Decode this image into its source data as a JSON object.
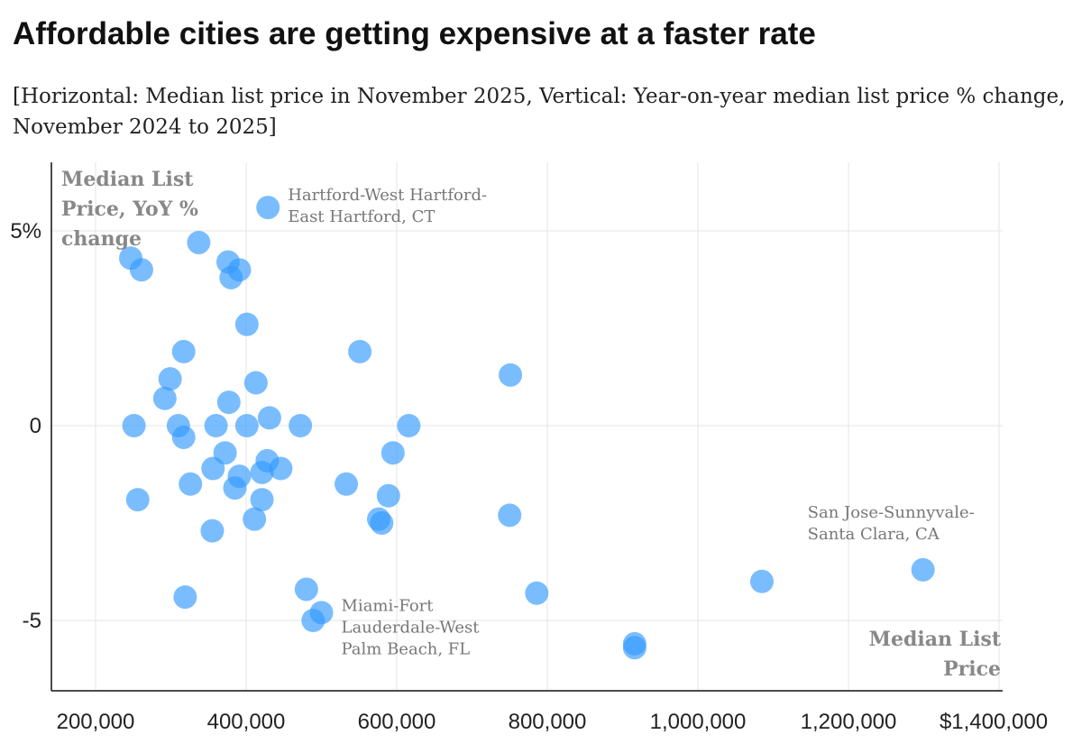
{
  "title": "Affordable cities are getting expensive at a faster rate",
  "subtitle": "[Horizontal: Median list price in November 2025, Vertical: Year-on-year median list price % change, November 2024 to 2025]",
  "chart_data": {
    "type": "scatter",
    "title": "Affordable cities are getting expensive at a faster rate",
    "xlabel": "Median List Price",
    "ylabel_lines": [
      "Median List",
      "Price, YoY %",
      "change"
    ],
    "xlabel_lines": [
      "Median List",
      "Price"
    ],
    "xlim": [
      140000,
      1400000
    ],
    "ylim": [
      -6.8,
      6.6
    ],
    "xticks": [
      {
        "v": 200000,
        "label": "200,000"
      },
      {
        "v": 400000,
        "label": "400,000"
      },
      {
        "v": 600000,
        "label": "600,000"
      },
      {
        "v": 800000,
        "label": "800,000"
      },
      {
        "v": 1000000,
        "label": "1,000,000"
      },
      {
        "v": 1200000,
        "label": "1,200,000"
      },
      {
        "v": 1400000,
        "label": "$1,400,000"
      }
    ],
    "yticks": [
      {
        "v": 5,
        "label": "5%"
      },
      {
        "v": 0,
        "label": "0"
      },
      {
        "v": -5,
        "label": "-5"
      }
    ],
    "grid": true,
    "color": "#3399ff",
    "points": [
      [
        246700,
        4.3
      ],
      [
        261000,
        4.0
      ],
      [
        337000,
        4.7
      ],
      [
        376000,
        4.2
      ],
      [
        391000,
        4.0
      ],
      [
        380000,
        3.8
      ],
      [
        429000,
        5.6
      ],
      [
        401000,
        2.6
      ],
      [
        317000,
        1.9
      ],
      [
        551000,
        1.9
      ],
      [
        751000,
        1.3
      ],
      [
        299000,
        1.2
      ],
      [
        413000,
        1.1
      ],
      [
        292000,
        0.7
      ],
      [
        377000,
        0.6
      ],
      [
        251000,
        0
      ],
      [
        310000,
        0
      ],
      [
        360000,
        0
      ],
      [
        401000,
        0
      ],
      [
        431000,
        0.2
      ],
      [
        472000,
        0
      ],
      [
        616000,
        0
      ],
      [
        317000,
        -0.3
      ],
      [
        595000,
        -0.7
      ],
      [
        372000,
        -0.7
      ],
      [
        356000,
        -1.1
      ],
      [
        391000,
        -1.3
      ],
      [
        428000,
        -0.9
      ],
      [
        446000,
        -1.1
      ],
      [
        421000,
        -1.2
      ],
      [
        326000,
        -1.5
      ],
      [
        385000,
        -1.6
      ],
      [
        533000,
        -1.5
      ],
      [
        421000,
        -1.9
      ],
      [
        589000,
        -1.8
      ],
      [
        256000,
        -1.9
      ],
      [
        411000,
        -2.4
      ],
      [
        576000,
        -2.4
      ],
      [
        580000,
        -2.5
      ],
      [
        750000,
        -2.3
      ],
      [
        355000,
        -2.7
      ],
      [
        319000,
        -4.4
      ],
      [
        480000,
        -4.2
      ],
      [
        500000,
        -4.8
      ],
      [
        489000,
        -5.0
      ],
      [
        786000,
        -4.3
      ],
      [
        1085000,
        -4.0
      ],
      [
        1299000,
        -3.7
      ],
      [
        916000,
        -5.6
      ],
      [
        916000,
        -5.7
      ]
    ],
    "annotations": [
      {
        "lines": [
          "Hartford-West Hartford-",
          "East Hartford, CT"
        ],
        "x": 429000,
        "y": 5.6,
        "anchor": "start"
      },
      {
        "lines": [
          "Miami-Fort",
          "Lauderdale-West",
          "Palm Beach, FL"
        ],
        "x": 500000,
        "y": -4.8,
        "anchor": "start"
      },
      {
        "lines": [
          "San Jose-Sunnyvale-",
          "Santa Clara, CA"
        ],
        "x": 1299000,
        "y": -3.7,
        "anchor": "end"
      }
    ]
  }
}
